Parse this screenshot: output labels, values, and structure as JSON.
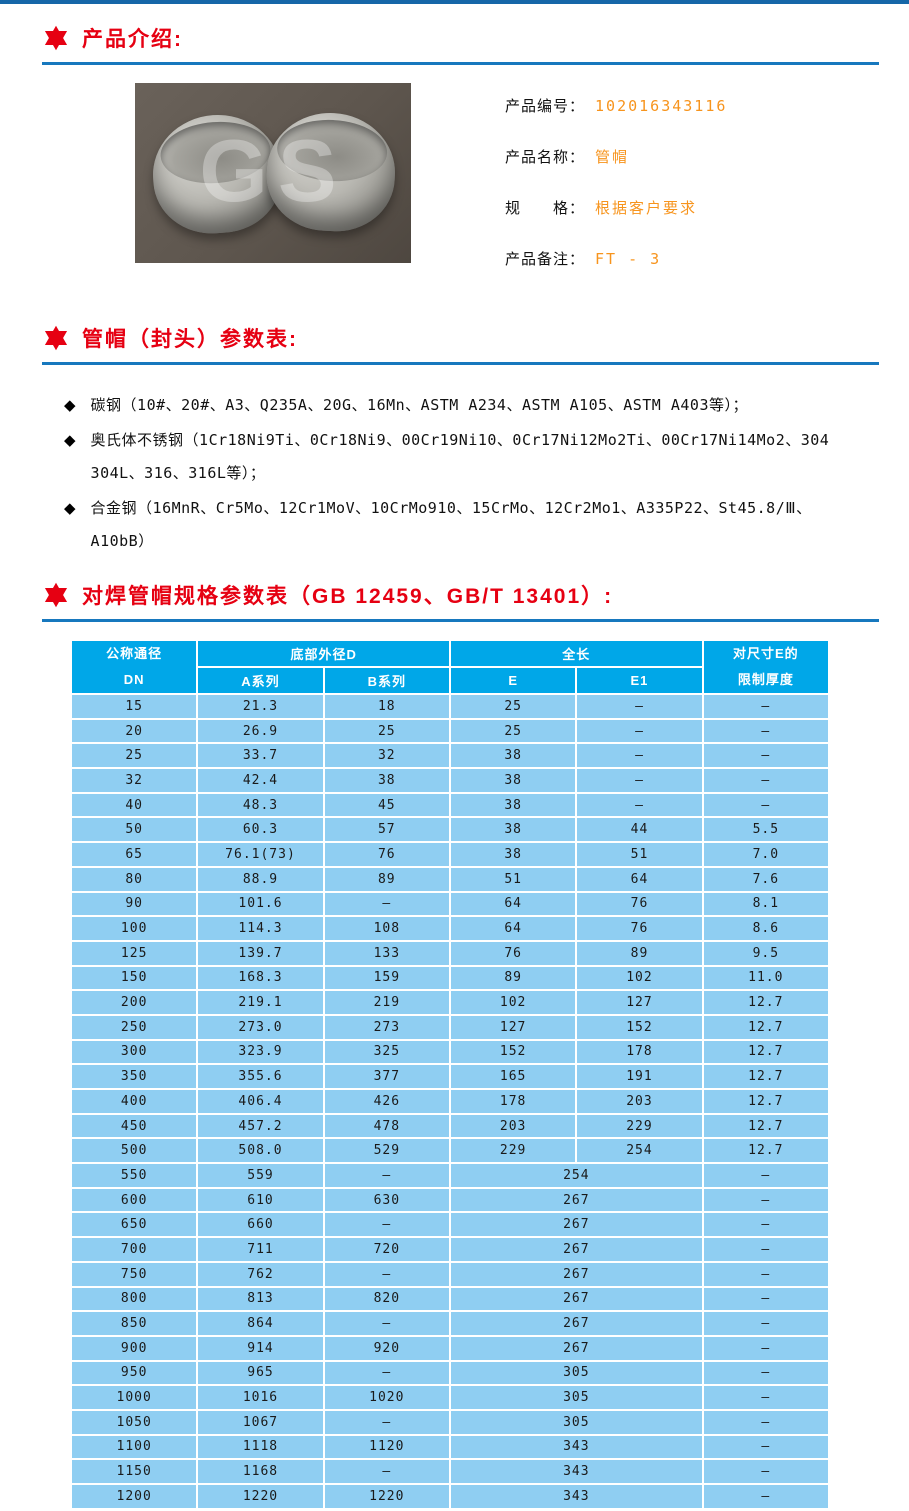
{
  "colors": {
    "accent_red": "#E60012",
    "accent_orange": "#F7941D",
    "rule_blue": "#1778BE",
    "top_border_blue": "#1667A8",
    "table_header_blue": "#00A7E8",
    "table_row_blue": "#8FCEF2",
    "image_bg": "#5E564E"
  },
  "sections": {
    "intro_title": "产品介绍:",
    "params_title": "管帽（封头）参数表:",
    "spec_title": "对焊管帽规格参数表（GB 12459、GB/T 13401）:"
  },
  "product": {
    "image_watermark": "GS",
    "fields": [
      {
        "label": "产品编号：",
        "value": "102016343116"
      },
      {
        "label": "产品名称：",
        "value": "管帽"
      },
      {
        "label": "规　　格：",
        "value": "根据客户要求"
      },
      {
        "label": "产品备注：",
        "value": "FT - 3"
      }
    ]
  },
  "materials": [
    "碳钢（10#、20#、A3、Q235A、20G、16Mn、ASTM A234、ASTM A105、ASTM A403等）；",
    "奥氏体不锈钢（1Cr18Ni9Ti、0Cr18Ni9、00Cr19Ni10、0Cr17Ni12Mo2Ti、00Cr17Ni14Mo2、304\n304L、316、316L等）；",
    "合金钢（16MnR、Cr5Mo、12Cr1MoV、10CrMo910、15CrMo、12Cr2Mo1、A335P22、St45.8/Ⅲ、\nA10bB）"
  ],
  "spec_table": {
    "header": {
      "col_dn_line1": "公称通径",
      "col_dn_line2": "DN",
      "col_d": "底部外径D",
      "col_a": "A系列",
      "col_b": "B系列",
      "col_len": "全长",
      "col_e": "E",
      "col_e1": "E1",
      "col_limit_line1": "对尺寸E的",
      "col_limit_line2": "限制厚度"
    },
    "rows": [
      {
        "c": [
          "15",
          "21.3",
          "18",
          "25",
          "–",
          "–"
        ]
      },
      {
        "c": [
          "20",
          "26.9",
          "25",
          "25",
          "–",
          "–"
        ]
      },
      {
        "c": [
          "25",
          "33.7",
          "32",
          "38",
          "–",
          "–"
        ]
      },
      {
        "c": [
          "32",
          "42.4",
          "38",
          "38",
          "–",
          "–"
        ]
      },
      {
        "c": [
          "40",
          "48.3",
          "45",
          "38",
          "–",
          "–"
        ]
      },
      {
        "c": [
          "50",
          "60.3",
          "57",
          "38",
          "44",
          "5.5"
        ]
      },
      {
        "c": [
          "65",
          "76.1(73)",
          "76",
          "38",
          "51",
          "7.0"
        ]
      },
      {
        "c": [
          "80",
          "88.9",
          "89",
          "51",
          "64",
          "7.6"
        ]
      },
      {
        "c": [
          "90",
          "101.6",
          "–",
          "64",
          "76",
          "8.1"
        ]
      },
      {
        "c": [
          "100",
          "114.3",
          "108",
          "64",
          "76",
          "8.6"
        ]
      },
      {
        "c": [
          "125",
          "139.7",
          "133",
          "76",
          "89",
          "9.5"
        ]
      },
      {
        "c": [
          "150",
          "168.3",
          "159",
          "89",
          "102",
          "11.0"
        ]
      },
      {
        "c": [
          "200",
          "219.1",
          "219",
          "102",
          "127",
          "12.7"
        ]
      },
      {
        "c": [
          "250",
          "273.0",
          "273",
          "127",
          "152",
          "12.7"
        ]
      },
      {
        "c": [
          "300",
          "323.9",
          "325",
          "152",
          "178",
          "12.7"
        ]
      },
      {
        "c": [
          "350",
          "355.6",
          "377",
          "165",
          "191",
          "12.7"
        ]
      },
      {
        "c": [
          "400",
          "406.4",
          "426",
          "178",
          "203",
          "12.7"
        ]
      },
      {
        "c": [
          "450",
          "457.2",
          "478",
          "203",
          "229",
          "12.7"
        ]
      },
      {
        "c": [
          "500",
          "508.0",
          "529",
          "229",
          "254",
          "12.7"
        ]
      },
      {
        "c": [
          "550",
          "559",
          "–",
          "254",
          "–"
        ]
      },
      {
        "c": [
          "600",
          "610",
          "630",
          "267",
          "–"
        ]
      },
      {
        "c": [
          "650",
          "660",
          "–",
          "267",
          "–"
        ]
      },
      {
        "c": [
          "700",
          "711",
          "720",
          "267",
          "–"
        ]
      },
      {
        "c": [
          "750",
          "762",
          "–",
          "267",
          "–"
        ]
      },
      {
        "c": [
          "800",
          "813",
          "820",
          "267",
          "–"
        ]
      },
      {
        "c": [
          "850",
          "864",
          "–",
          "267",
          "–"
        ]
      },
      {
        "c": [
          "900",
          "914",
          "920",
          "267",
          "–"
        ]
      },
      {
        "c": [
          "950",
          "965",
          "–",
          "305",
          "–"
        ]
      },
      {
        "c": [
          "1000",
          "1016",
          "1020",
          "305",
          "–"
        ]
      },
      {
        "c": [
          "1050",
          "1067",
          "–",
          "305",
          "–"
        ]
      },
      {
        "c": [
          "1100",
          "1118",
          "1120",
          "343",
          "–"
        ]
      },
      {
        "c": [
          "1150",
          "1168",
          "–",
          "343",
          "–"
        ]
      },
      {
        "c": [
          "1200",
          "1220",
          "1220",
          "343",
          "–"
        ]
      }
    ]
  }
}
